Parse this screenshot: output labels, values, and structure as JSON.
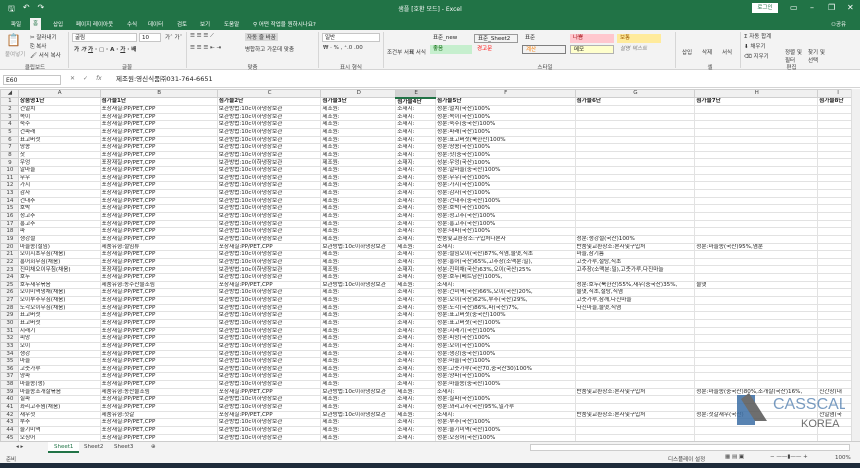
{
  "app": {
    "title": "샘플 [호환 모드] - Excel",
    "login": "로그인",
    "share": "공유"
  },
  "ribbon_tabs": [
    "파일",
    "홈",
    "삽입",
    "페이지 레이아웃",
    "수식",
    "데이터",
    "검토",
    "보기",
    "도움말",
    "어떤 작업을 원하시나요?"
  ],
  "clipboard": {
    "paste": "붙여넣기",
    "cut": "잘라내기",
    "copy": "복사",
    "format_painter": "서식 복사",
    "group": "클립보드"
  },
  "font": {
    "name": "굴림",
    "size": "10",
    "group": "글꼴"
  },
  "align": {
    "wrap": "자동 줄 바꿈",
    "merge": "병합하고 가운데 맞춤",
    "group": "맞춤"
  },
  "number": {
    "format": "일반",
    "group": "표시 형식"
  },
  "styles": {
    "cond": "조건부 서식",
    "table": "표 서식",
    "items": [
      "표준_new",
      "표준_Sheet2",
      "표준",
      "나쁨",
      "보통",
      "좋음",
      "경고문",
      "계산",
      "메모",
      "설명 텍스트"
    ],
    "colors": {
      "bad": "#ffc7ce",
      "neutral": "#ffeb9c",
      "good": "#c6efce",
      "calc": "#f2f2f2",
      "memo": "#ffffcc"
    },
    "group": "스타일"
  },
  "cells": {
    "insert": "삽입",
    "delete": "삭제",
    "format": "서식",
    "group": "셀"
  },
  "editing": {
    "autosum": "자동 합계",
    "fill": "채우기",
    "clear": "지우기",
    "sort": "정렬 및 필터",
    "find": "찾기 및 선택",
    "group": "편집"
  },
  "formula": {
    "name_box": "E60",
    "value": "제조원:영신식품㈜031-764-6651"
  },
  "columns": [
    "A",
    "B",
    "C",
    "D",
    "E",
    "F",
    "G",
    "H",
    "I"
  ],
  "rows": [
    [
      "상품명1단",
      "첨가물1단",
      "첨가물2단",
      "첨가물3단",
      "첨가물4단",
      "첨가물5단",
      "첨가물6단",
      "첨가물7단",
      "첨가물8단"
    ],
    [
      "건멸치",
      "포장재질:PP/PET,CPP",
      "보관방법:10c이하냉장보관",
      "제조원:",
      "소재지:",
      "성분:멸치(국산)100%",
      "",
      "",
      ""
    ],
    [
      "목이",
      "포장재질:PP/PET,CPP",
      "보관방법:10c이하냉장보관",
      "제조원:",
      "소재지:",
      "성분:목이(국산)100%",
      "",
      "",
      ""
    ],
    [
      "숙주",
      "포장재질:PP/PET,CPP",
      "보관방법:10c이하냉장보관",
      "제조원:",
      "소재지:",
      "성분:숙주(중국산)100%",
      "",
      "",
      ""
    ],
    [
      "건파래",
      "포장재질:PP/PET,CPP",
      "보관방법:10c이하냉장보관",
      "제조원:",
      "소재지:",
      "성분:파래(국산)100%",
      "",
      "",
      ""
    ],
    [
      "표고버섯",
      "포장재질:PP/PET,CPP",
      "보관방법:10c이하냉장보관",
      "제조원:",
      "소재지:",
      "성분:표고버섯(북한산)100%",
      "",
      "",
      ""
    ],
    [
      "땅콩",
      "포장재질:PP/PET,CPP",
      "보관방법:10c이하냉장보관",
      "제조원:",
      "소재지:",
      "성분:땅콩(국산)100%",
      "",
      "",
      ""
    ],
    [
      "잣",
      "포장재질:PP/PET,CPP",
      "보관방법:10c이하냉장보관",
      "제조원:",
      "소재지:",
      "성분:잣(중국산)100%",
      "",
      "",
      ""
    ],
    [
      "우엉",
      "포장재질:PP/PET,CPP",
      "보관방법:10c이하냉장보관",
      "제조원:",
      "소재지:",
      "성분:우엉(국산)100%",
      "",
      "",
      ""
    ],
    [
      "알마늘",
      "포장재질:PP/PET,CPP",
      "보관방법:10c이하냉장보관",
      "제조원:",
      "소재지:",
      "성분:알마늘(중국산)100%",
      "",
      "",
      ""
    ],
    [
      "무우",
      "포장재질:PP/PET,CPP",
      "보관방법:10c이하냉장보관",
      "제조원:",
      "소재지:",
      "성분:무우(국산)100%",
      "",
      "",
      ""
    ],
    [
      "가지",
      "포장재질:PP/PET,CPP",
      "보관방법:10c이하냉장보관",
      "제조원:",
      "소재지:",
      "성분:가지(국산)100%",
      "",
      "",
      ""
    ],
    [
      "감자",
      "포장재질:PP/PET,CPP",
      "보관방법:10c이하냉장보관",
      "제조원:",
      "소재지:",
      "성분:감자(국산)100%",
      "",
      "",
      ""
    ],
    [
      "건대추",
      "포장재질:PP/PET,CPP",
      "보관방법:10c이하냉장보관",
      "제조원:",
      "소재지:",
      "성분:건대추(중국산)100%",
      "",
      "",
      ""
    ],
    [
      "호박",
      "포장재질:PP/PET,CPP",
      "보관방법:10c이하냉장보관",
      "제조원:",
      "소재지:",
      "성분:호박(국산)100%",
      "",
      "",
      ""
    ],
    [
      "청고추",
      "포장재질:PP/PET,CPP",
      "보관방법:10c이하냉장보관",
      "제조원:",
      "소재지:",
      "성분:청고추(국산)100%",
      "",
      "",
      ""
    ],
    [
      "홍고추",
      "포장재질:PP/PET,CPP",
      "보관방법:10c이하냉장보관",
      "제조원:",
      "소재지:",
      "성분:홍고추(국산)100%",
      "",
      "",
      ""
    ],
    [
      "파",
      "포장재질:PP/PET,CPP",
      "보관방법:10c이하냉장보관",
      "제조원:",
      "소재지:",
      "성분:대파(국산)100%",
      "",
      "",
      ""
    ],
    [
      "생강절",
      "포장재질:PP/PET,CPP",
      "보관방법:10c이하냉장보관",
      "제조원:",
      "소재지:",
      "반품및교환장소:구입처나본사",
      "성분:생강절(국산)100%",
      "",
      ""
    ],
    [
      "마늘쫑(절임)",
      "제품유형:절임류",
      "포장재질:PP/PET,CPP",
      "보관방법:10c이하냉장보관",
      "제조원:",
      "소재지:",
      "반품및교환장소:본사및구입처",
      "성분:마늘쫑(국산)95%,염분",
      ""
    ],
    [
      "오이지초무침(채움)",
      "포장재질:PP/PET,CPP",
      "보관방법:10c이하냉장보관",
      "제조원:",
      "소재지:",
      "성분:절임오이(국산)87%,식염,물엿,식초",
      "마늘,참기름",
      "",
      ""
    ],
    [
      "홍어회무침(채움)",
      "포장재질:PP/PET,CPP",
      "보관방법:10c이하냉장보관",
      "제조원:",
      "소재지:",
      "성분:홍어(국산)65%,고추장(소맥분:밀),",
      "고춧가루,설탕,식초",
      "",
      ""
    ],
    [
      "진미채오이무침(채움)",
      "포장재질:PP/PET,CPP",
      "보관방법:10c이하냉장보관",
      "제조원:",
      "소재지:",
      "성분:진미채(국산)63%,오이(국산)25%",
      "고추장(소맥분:밀),고춧가루,다진마늘",
      "",
      ""
    ],
    [
      "호두",
      "포장재질:PP/PET,CPP",
      "보관방법:10c이하냉장보관",
      "제조원:",
      "소재지:",
      "성분:호두(베트남산)100%,",
      "",
      "",
      ""
    ],
    [
      "호두새우볶음",
      "제품유형:농수산물조림",
      "포장재질:PP/PET,CPP",
      "보관방법:10c이하냉장보관",
      "제조원:",
      "소재지:",
      "성분:호두(북한산)55%,새우(중국산)35%,",
      "물엿",
      ""
    ],
    [
      "오이미역냉채(채움)",
      "포장재질:PP/PET,CPP",
      "보관방법:10c이하냉장보관",
      "제조원:",
      "소재지:",
      "성분:건미역(국산)66%,오이(국산)20%,",
      "물엿,식초,설탕,식염",
      "",
      ""
    ],
    [
      "오이부추무침(채움)",
      "포장재질:PP/PET,CPP",
      "보관방법:10c이하냉장보관",
      "제조원:",
      "소재지:",
      "성분:오이(국산)62%,부추(국산)29%,",
      "고춧가루,참깨,다진마늘",
      "",
      ""
    ],
    [
      "노각오이무침(채움)",
      "포장재질:PP/PET,CPP",
      "보관방법:10c이하냉장보관",
      "제조원:",
      "소재지:",
      "성분:노각(국산)86%,파(국산)7%,",
      "다진마늘,물엿,식염",
      "",
      ""
    ],
    [
      "표고버섯",
      "포장재질:PP/PET,CPP",
      "보관방법:10c이하냉장보관",
      "제조원:",
      "소재지:",
      "성분:표고버섯(중국산)100%",
      "",
      "",
      ""
    ],
    [
      "표고버섯",
      "포장재질:PP/PET,CPP",
      "보관방법:10c이하냉장보관",
      "제조원:",
      "소재지:",
      "성분:표고버섯(국산)100%",
      "",
      "",
      ""
    ],
    [
      "시래기",
      "포장재질:PP/PET,CPP",
      "보관방법:10c이하냉장보관",
      "제조원:",
      "소재지:",
      "성분:시래기(국산)100%",
      "",
      "",
      ""
    ],
    [
      "피망",
      "포장재질:PP/PET,CPP",
      "보관방법:10c이하냉장보관",
      "제조원:",
      "소재지:",
      "성분:피망(국산)100%",
      "",
      "",
      ""
    ],
    [
      "오이",
      "포장재질:PP/PET,CPP",
      "보관방법:10c이하냉장보관",
      "제조원:",
      "소재지:",
      "성분:오이(국산)100%",
      "",
      "",
      ""
    ],
    [
      "생강",
      "포장재질:PP/PET,CPP",
      "보관방법:10c이하냉장보관",
      "제조원:",
      "소재지:",
      "성분:생강(중국산)100%",
      "",
      "",
      ""
    ],
    [
      "마늘",
      "포장재질:PP/PET,CPP",
      "보관방법:10c이하냉장보관",
      "제조원:",
      "소재지:",
      "성분:마늘(국산)100%",
      "",
      "",
      ""
    ],
    [
      "고춧가루",
      "포장재질:PP/PET,CPP",
      "보관방법:10c이하냉장보관",
      "제조원:",
      "소재지:",
      "성분:고춧가루(국산70,중국산30)100%",
      "",
      "",
      ""
    ],
    [
      "양파",
      "포장재질:PP/PET,CPP",
      "보관방법:10c이하냉장보관",
      "제조원:",
      "소재지:",
      "성분:양파(국산)100%",
      "",
      "",
      ""
    ],
    [
      "마늘쫑(생)",
      "포장재질:PP/PET,CPP",
      "보관방법:10c이하냉장보관",
      "제조원:",
      "소재지:",
      "성분:마늘쫑(중국산)100%",
      "",
      "",
      ""
    ],
    [
      "마늘쫑조개살볶음",
      "제품유형:농산물조림",
      "포장재질:PP/PET,CPP",
      "보관방법:10c이하냉장보관",
      "제조원:",
      "소재지:",
      "반품및교환장소:본사및구입처",
      "성분:마늘쫑(중국산)80%,조개살(국산)16%,",
      "진간장(대"
    ],
    [
      "실파",
      "포장재질:PP/PET,CPP",
      "보관방법:10c이하냉장보관",
      "제조원:",
      "소재지:",
      "성분:실파(국산)100%",
      "",
      "",
      ""
    ],
    [
      "꽈리고추찜(채움)",
      "포장재질:PP/PET,CPP",
      "보관방법:10c이하냉장보관",
      "제조원:",
      "소재지:",
      "성분:꽈리고추(국산)95%,밀가루",
      "",
      "",
      ""
    ],
    [
      "새우젓",
      "제품유형:젓갈",
      "포장재질:PP/PET,CPP",
      "보관방법:10c이하냉장보관",
      "제조원:",
      "소재지:",
      "반품및교환장소:본사및구입처",
      "성분:젓갈새우(국산)",
      "천일염(국"
    ],
    [
      "부추",
      "포장재질:PP/PET,CPP",
      "보관방법:10c이하냉장보관",
      "제조원:",
      "소재지:",
      "성분:부추(국산)100%",
      "",
      "",
      ""
    ],
    [
      "줄기미역",
      "포장재질:PP/PET,CPP",
      "보관방법:10c이하냉장보관",
      "제조원:",
      "소재지:",
      "성분:줄기미역(국산)100%",
      "",
      "",
      ""
    ],
    [
      "오징어",
      "포장재질:PP/PET,CPP",
      "보관방법:10c이하냉장보관",
      "제조원:",
      "소재지:",
      "성분:오징어(국산)100%",
      "",
      "",
      ""
    ]
  ],
  "sheets": [
    "Sheet1",
    "Sheet2",
    "Sheet3"
  ],
  "status": {
    "ready": "준비",
    "display": "디스플레이 설정",
    "zoom": "100%"
  },
  "watermark": {
    "line1": "CASSCALE",
    "line2": "KOREA"
  },
  "accent": "#217346"
}
